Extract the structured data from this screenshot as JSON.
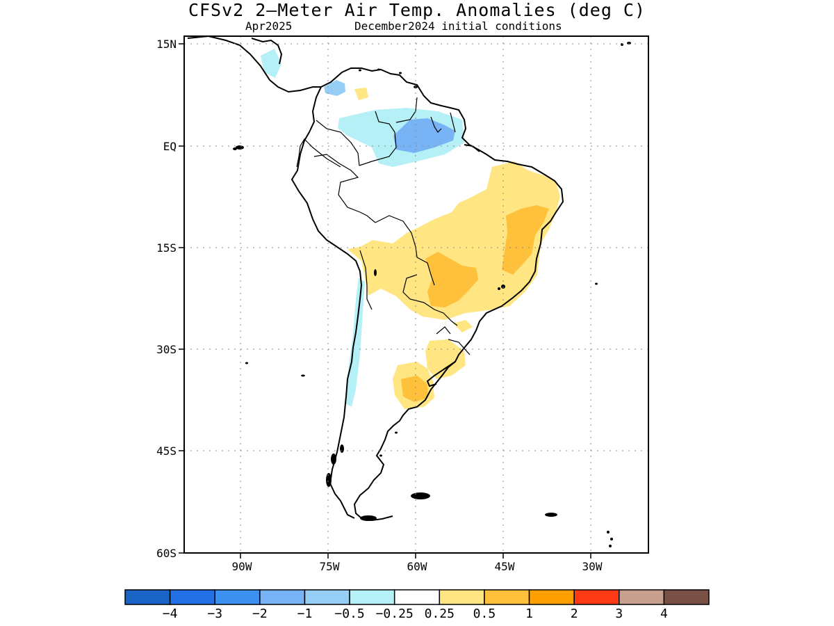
{
  "title": "CFSv2 2–Meter Air Temp. Anomalies (deg C)",
  "subtitle_left": "Apr2025",
  "subtitle_right": "December2024 initial conditions",
  "map": {
    "lat_ticks": [
      "15N",
      "EQ",
      "15S",
      "30S",
      "45S",
      "60S"
    ],
    "lon_ticks": [
      "90W",
      "75W",
      "60W",
      "45W",
      "30W"
    ]
  },
  "legend": {
    "colors": [
      "#1a64c8",
      "#2370e6",
      "#3c90f0",
      "#78b4f5",
      "#96cdf5",
      "#b4f0f5",
      "#ffffff",
      "#ffe682",
      "#ffc03c",
      "#ffa000",
      "#ff3a14",
      "#c8a090",
      "#785046"
    ],
    "labels": [
      "−4",
      "−3",
      "−2",
      "−1",
      "−0.5",
      "−0.25",
      "0.25",
      "0.5",
      "1",
      "2",
      "3",
      "4"
    ]
  }
}
